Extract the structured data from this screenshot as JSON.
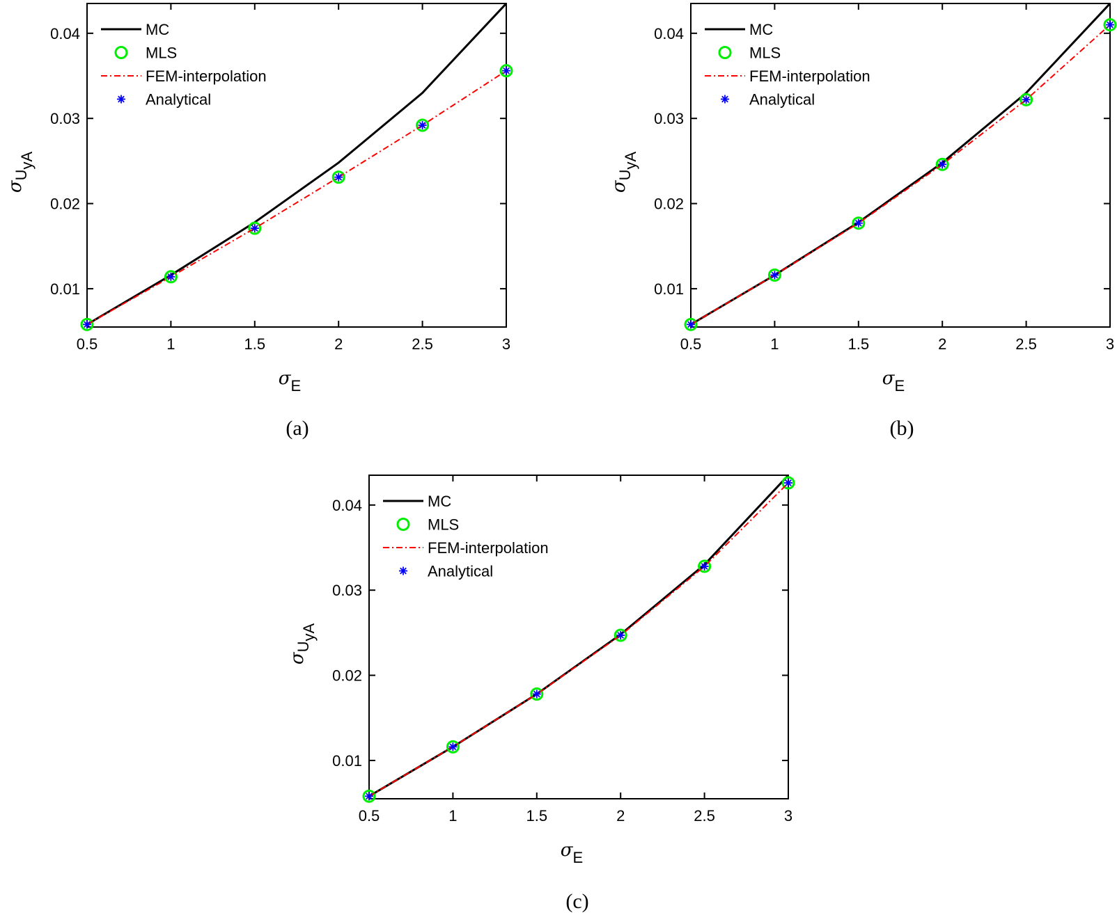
{
  "chart_data": [
    {
      "type": "line",
      "panel_label": "(a)",
      "x": [
        0.5,
        1,
        1.5,
        2,
        2.5,
        3
      ],
      "xlim": [
        0.5,
        3
      ],
      "ylim": [
        0.0055,
        0.0435
      ],
      "xticks": [
        "0.5",
        "1",
        "1.5",
        "2",
        "2.5",
        "3"
      ],
      "yticks": [
        "0.01",
        "0.02",
        "0.03",
        "0.04"
      ],
      "xlabel": {
        "symbol": "σ",
        "sub": "E"
      },
      "ylabel": {
        "symbol": "σ",
        "sub": "U",
        "subsub": "yA"
      },
      "legend_position": "top-left",
      "series": [
        {
          "name": "MC",
          "style": "solid",
          "color": "#000000",
          "values": [
            0.0058,
            0.0116,
            0.0178,
            0.0248,
            0.033,
            0.0435
          ]
        },
        {
          "name": "MLS",
          "style": "circle",
          "color": "#00ee00",
          "values": [
            0.0058,
            0.0114,
            0.0171,
            0.0231,
            0.0292,
            0.0356
          ]
        },
        {
          "name": "FEM-interpolation",
          "style": "dashdot",
          "color": "#ff0000",
          "values": [
            0.0058,
            0.0114,
            0.0171,
            0.0231,
            0.0292,
            0.0356
          ]
        },
        {
          "name": "Analytical",
          "style": "asterisk",
          "color": "#0000ff",
          "values": [
            0.0058,
            0.0114,
            0.0171,
            0.0231,
            0.0292,
            0.0356
          ]
        }
      ]
    },
    {
      "type": "line",
      "panel_label": "(b)",
      "x": [
        0.5,
        1,
        1.5,
        2,
        2.5,
        3
      ],
      "xlim": [
        0.5,
        3
      ],
      "ylim": [
        0.0055,
        0.0435
      ],
      "xticks": [
        "0.5",
        "1",
        "1.5",
        "2",
        "2.5",
        "3"
      ],
      "yticks": [
        "0.01",
        "0.02",
        "0.03",
        "0.04"
      ],
      "xlabel": {
        "symbol": "σ",
        "sub": "E"
      },
      "ylabel": {
        "symbol": "σ",
        "sub": "U",
        "subsub": "yA"
      },
      "legend_position": "top-left",
      "series": [
        {
          "name": "MC",
          "style": "solid",
          "color": "#000000",
          "values": [
            0.0058,
            0.0116,
            0.0178,
            0.0248,
            0.033,
            0.0435
          ]
        },
        {
          "name": "MLS",
          "style": "circle",
          "color": "#00ee00",
          "values": [
            0.0058,
            0.0116,
            0.0177,
            0.0246,
            0.0322,
            0.041
          ]
        },
        {
          "name": "FEM-interpolation",
          "style": "dashdot",
          "color": "#ff0000",
          "values": [
            0.0058,
            0.0116,
            0.0177,
            0.0246,
            0.0322,
            0.041
          ]
        },
        {
          "name": "Analytical",
          "style": "asterisk",
          "color": "#0000ff",
          "values": [
            0.0058,
            0.0116,
            0.0177,
            0.0246,
            0.0322,
            0.041
          ]
        }
      ]
    },
    {
      "type": "line",
      "panel_label": "(c)",
      "x": [
        0.5,
        1,
        1.5,
        2,
        2.5,
        3
      ],
      "xlim": [
        0.5,
        3
      ],
      "ylim": [
        0.0055,
        0.0435
      ],
      "xticks": [
        "0.5",
        "1",
        "1.5",
        "2",
        "2.5",
        "3"
      ],
      "yticks": [
        "0.01",
        "0.02",
        "0.03",
        "0.04"
      ],
      "xlabel": {
        "symbol": "σ",
        "sub": "E"
      },
      "ylabel": {
        "symbol": "σ",
        "sub": "U",
        "subsub": "yA"
      },
      "legend_position": "top-left",
      "series": [
        {
          "name": "MC",
          "style": "solid",
          "color": "#000000",
          "values": [
            0.0058,
            0.0116,
            0.0178,
            0.0248,
            0.033,
            0.0435
          ]
        },
        {
          "name": "MLS",
          "style": "circle",
          "color": "#00ee00",
          "values": [
            0.0058,
            0.0116,
            0.0178,
            0.0247,
            0.0328,
            0.0426
          ]
        },
        {
          "name": "FEM-interpolation",
          "style": "dashdot",
          "color": "#ff0000",
          "values": [
            0.0058,
            0.0116,
            0.0178,
            0.0247,
            0.0328,
            0.0426
          ]
        },
        {
          "name": "Analytical",
          "style": "asterisk",
          "color": "#0000ff",
          "values": [
            0.0058,
            0.0116,
            0.0178,
            0.0247,
            0.0328,
            0.0426
          ]
        }
      ]
    }
  ]
}
